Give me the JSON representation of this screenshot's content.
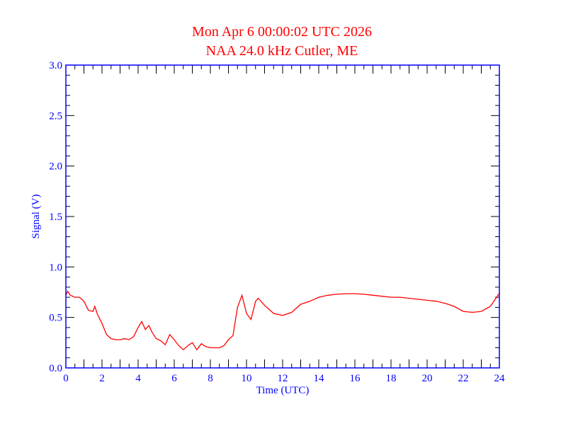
{
  "chart_data": {
    "type": "line",
    "title": "Mon Apr 6 00:00:02 UTC 2026",
    "subtitle": "NAA 24.0 kHz Cutler, ME",
    "xlabel": "Time (UTC)",
    "ylabel": "Signal (V)",
    "xlim": [
      0,
      24
    ],
    "ylim": [
      0,
      3.0
    ],
    "xticks": [
      "0",
      "2",
      "4",
      "6",
      "8",
      "10",
      "12",
      "14",
      "16",
      "18",
      "20",
      "22",
      "24"
    ],
    "yticks": [
      "0.0",
      "0.5",
      "1.0",
      "1.5",
      "2.0",
      "2.5",
      "3.0"
    ],
    "grid": false,
    "colors": {
      "title": "#ff0000",
      "axes": "#0000ff",
      "series": "#ff0000"
    },
    "series": [
      {
        "x": [
          0,
          0.1,
          0.25,
          0.5,
          0.75,
          1.0,
          1.25,
          1.5,
          1.6,
          1.75,
          2.0,
          2.25,
          2.5,
          2.75,
          3.0,
          3.25,
          3.5,
          3.75,
          4.0,
          4.2,
          4.4,
          4.6,
          4.75,
          5.0,
          5.25,
          5.5,
          5.75,
          6.0,
          6.25,
          6.5,
          6.75,
          7.0,
          7.25,
          7.5,
          7.75,
          8.0,
          8.25,
          8.5,
          8.75,
          9.0,
          9.25,
          9.5,
          9.75,
          10.0,
          10.25,
          10.5,
          10.65,
          11.0,
          11.5,
          12,
          12.5,
          13,
          13.5,
          14,
          14.5,
          15,
          15.5,
          16,
          16.5,
          17,
          17.5,
          18,
          18.5,
          19,
          19.5,
          20,
          20.5,
          21,
          21.5,
          22,
          22.5,
          23,
          23.5,
          24
        ],
        "y": [
          0.72,
          0.76,
          0.72,
          0.7,
          0.7,
          0.66,
          0.57,
          0.56,
          0.61,
          0.53,
          0.44,
          0.33,
          0.29,
          0.28,
          0.28,
          0.29,
          0.28,
          0.31,
          0.4,
          0.46,
          0.38,
          0.42,
          0.36,
          0.29,
          0.27,
          0.23,
          0.33,
          0.28,
          0.22,
          0.18,
          0.22,
          0.25,
          0.18,
          0.24,
          0.21,
          0.2,
          0.2,
          0.2,
          0.22,
          0.28,
          0.32,
          0.6,
          0.72,
          0.54,
          0.48,
          0.66,
          0.69,
          0.62,
          0.54,
          0.52,
          0.55,
          0.63,
          0.66,
          0.7,
          0.72,
          0.73,
          0.735,
          0.735,
          0.73,
          0.72,
          0.71,
          0.7,
          0.7,
          0.69,
          0.68,
          0.67,
          0.66,
          0.64,
          0.61,
          0.56,
          0.55,
          0.56,
          0.61,
          0.74
        ]
      }
    ]
  }
}
